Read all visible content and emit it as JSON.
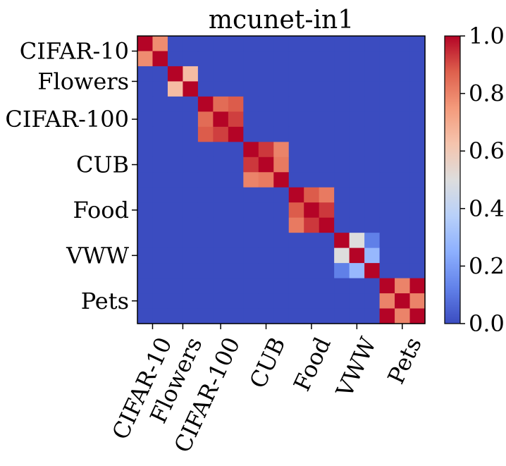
{
  "chart_data": {
    "type": "heatmap",
    "title": "mcunet-in1",
    "row_groups": [
      "CIFAR-10",
      "Flowers",
      "CIFAR-100",
      "CUB",
      "Food",
      "VWW",
      "Pets"
    ],
    "col_groups": [
      "CIFAR-10",
      "Flowers",
      "CIFAR-100",
      "CUB",
      "Food",
      "VWW",
      "Pets"
    ],
    "group_sizes": [
      2,
      2,
      3,
      3,
      3,
      3,
      3
    ],
    "colormap": "coolwarm",
    "vmin": 0.0,
    "vmax": 1.0,
    "colorbar": {
      "ticks": [
        0.0,
        0.2,
        0.4,
        0.6,
        0.8,
        1.0
      ],
      "tick_labels": [
        "0.0",
        "0.2",
        "0.4",
        "0.6",
        "0.8",
        "1.0"
      ]
    },
    "blocks": [
      [
        [
          1.0,
          0.78
        ],
        [
          0.78,
          1.0
        ]
      ],
      [
        [
          1.0,
          0.65
        ],
        [
          0.65,
          1.0
        ]
      ],
      [
        [
          1.0,
          0.85,
          0.88
        ],
        [
          0.85,
          1.0,
          0.92
        ],
        [
          0.88,
          0.92,
          1.0
        ]
      ],
      [
        [
          1.0,
          0.93,
          0.8
        ],
        [
          0.93,
          1.0,
          0.82
        ],
        [
          0.8,
          0.82,
          1.0
        ]
      ],
      [
        [
          1.0,
          0.88,
          0.82
        ],
        [
          0.88,
          1.0,
          0.93
        ],
        [
          0.82,
          0.93,
          1.0
        ]
      ],
      [
        [
          1.0,
          0.5,
          0.12
        ],
        [
          0.5,
          1.0,
          0.28
        ],
        [
          0.12,
          0.28,
          1.0
        ]
      ],
      [
        [
          1.0,
          0.8,
          1.0
        ],
        [
          0.8,
          1.0,
          0.8
        ],
        [
          1.0,
          0.8,
          1.0
        ]
      ]
    ],
    "off_block_value": 0.0
  }
}
